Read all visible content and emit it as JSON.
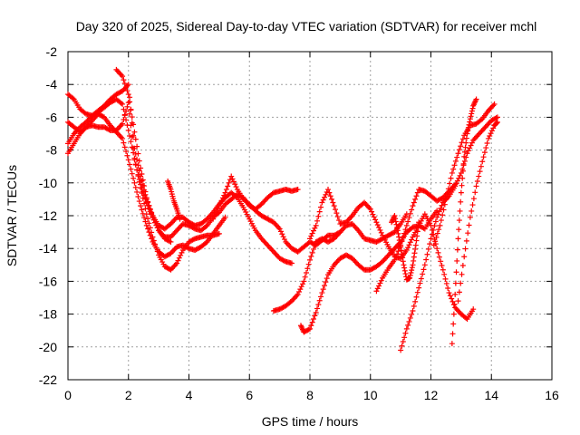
{
  "chart_data": {
    "type": "scatter",
    "title": "Day 320 of 2025, Sidereal Day-to-day VTEC variation (SDTVAR) for receiver mchl",
    "xlabel": "GPS time / hours",
    "ylabel": "SDTVAR / TECUs",
    "xlim": [
      0,
      16
    ],
    "ylim": [
      -22,
      -2
    ],
    "xticks": [
      0,
      2,
      4,
      6,
      8,
      10,
      12,
      14,
      16
    ],
    "yticks": [
      -22,
      -20,
      -18,
      -16,
      -14,
      -12,
      -10,
      -8,
      -6,
      -4,
      -2
    ],
    "grid": true,
    "marker": "plus",
    "color": "#ff0000",
    "series": [
      {
        "x": [
          0,
          0.2,
          0.4,
          0.6,
          0.8,
          1.0,
          1.2,
          1.4,
          1.6,
          1.8,
          2.0,
          2.2,
          2.4,
          2.6,
          2.8,
          3.0,
          3.2,
          3.4,
          3.6,
          3.8,
          4.0,
          4.2,
          4.4,
          4.6,
          4.8,
          5.0
        ],
        "y": [
          -4.6,
          -4.9,
          -5.5,
          -5.8,
          -5.9,
          -5.7,
          -5.4,
          -5.1,
          -4.9,
          -5.2,
          -6.8,
          -8.5,
          -10.3,
          -11.9,
          -13.3,
          -14.4,
          -15.1,
          -15.3,
          -14.9,
          -14.1,
          -13.6,
          -13.4,
          -13.3,
          -13.2,
          -13.2,
          -13.1
        ]
      },
      {
        "x": [
          0,
          0.2,
          0.4,
          0.6,
          0.8,
          1.0,
          1.2,
          1.4,
          1.6,
          1.8,
          2.0,
          2.2,
          2.4,
          2.6,
          2.8,
          3.0,
          3.2,
          3.4,
          3.6,
          3.8,
          4.0,
          4.2,
          4.4,
          4.6,
          4.8,
          5.0,
          5.2
        ],
        "y": [
          -6.3,
          -6.6,
          -6.9,
          -6.6,
          -6.2,
          -5.8,
          -6.0,
          -6.5,
          -6.9,
          -7.3,
          -8.6,
          -10.0,
          -11.4,
          -12.6,
          -13.6,
          -14.2,
          -14.5,
          -14.3,
          -13.9,
          -13.8,
          -14.0,
          -14.1,
          -13.9,
          -13.6,
          -13.1,
          -12.6,
          -12.1
        ]
      },
      {
        "x": [
          0,
          0.2,
          0.4,
          0.6,
          0.8,
          1.0,
          1.2,
          1.4,
          1.6,
          1.8,
          2.0,
          2.2,
          2.4,
          2.6,
          2.8,
          3.0,
          3.2,
          3.4,
          3.6,
          3.8,
          4.0,
          4.2,
          4.4,
          4.6,
          4.8,
          5.0,
          5.2,
          5.4,
          5.6,
          5.8,
          6.0,
          6.2,
          6.4,
          6.6,
          6.8,
          7.0,
          7.2,
          7.4,
          7.6
        ],
        "y": [
          -8.2,
          -7.6,
          -7.0,
          -6.6,
          -6.5,
          -6.6,
          -6.6,
          -6.8,
          -6.8,
          -6.4,
          -5.1,
          -8.6,
          -10.1,
          -11.2,
          -12.1,
          -12.9,
          -13.3,
          -13.3,
          -12.9,
          -12.5,
          -12.6,
          -12.8,
          -12.9,
          -12.6,
          -12.1,
          -11.8,
          -11.3,
          -11.0,
          -10.7,
          -10.9,
          -11.4,
          -11.6,
          -11.3,
          -10.9,
          -10.6,
          -10.5,
          -10.4,
          -10.5,
          -10.4
        ]
      },
      {
        "x": [
          0,
          0.2,
          0.4,
          0.6,
          0.8,
          1.0,
          1.2,
          1.4,
          1.6,
          1.8,
          2.0,
          2.2,
          2.4,
          2.6,
          2.8,
          3.0,
          3.2,
          3.4,
          3.6,
          3.8,
          4.0,
          4.2,
          4.4,
          4.6,
          4.8,
          5.0,
          5.2,
          5.4,
          5.6,
          5.8,
          6.0,
          6.2,
          6.4,
          6.6,
          6.8,
          7.0,
          7.2,
          7.4
        ],
        "y": [
          -7.6,
          -7.0,
          -6.6,
          -6.3,
          -5.9,
          -5.6,
          -5.3,
          -4.9,
          -4.6,
          -4.4,
          -4.0,
          -7.9,
          -9.6,
          -11.0,
          -12.0,
          -12.6,
          -12.8,
          -12.5,
          -12.1,
          -12.1,
          -12.4,
          -12.6,
          -12.5,
          -12.2,
          -11.8,
          -11.3,
          -10.9,
          -10.6,
          -10.9,
          -11.5,
          -12.2,
          -12.9,
          -13.4,
          -13.8,
          -14.2,
          -14.6,
          -14.8,
          -14.9
        ]
      },
      {
        "x": [
          1.6,
          1.8,
          2.0,
          2.2,
          2.4,
          2.6,
          2.8,
          3.0,
          3.2,
          3.4
        ],
        "y": [
          -3.1,
          -3.5,
          -4.6,
          -6.9,
          -9.1,
          -10.9,
          -12.1,
          -12.9,
          -13.4,
          -13.6
        ]
      },
      {
        "x": [
          3.3,
          3.4,
          3.5,
          3.6,
          3.7
        ],
        "y": [
          -9.9,
          -10.4,
          -11.1,
          -11.6,
          -12.2
        ]
      },
      {
        "x": [
          4.8,
          5.0,
          5.2,
          5.4,
          5.6,
          5.8,
          6.0,
          6.2,
          6.4,
          6.6,
          6.8,
          7.0,
          7.2,
          7.4,
          7.6,
          7.8,
          8.0,
          8.2,
          8.4,
          8.6,
          8.8,
          9.0
        ],
        "y": [
          -12.2,
          -11.4,
          -10.6,
          -9.6,
          -10.4,
          -11.0,
          -11.3,
          -11.7,
          -12.0,
          -12.2,
          -12.4,
          -12.8,
          -13.6,
          -14.0,
          -14.2,
          -13.9,
          -13.6,
          -13.8,
          -13.5,
          -13.2,
          -13.2,
          -13.0
        ]
      },
      {
        "x": [
          6.8,
          7.0,
          7.2,
          7.4,
          7.6,
          7.8,
          8.0,
          8.2,
          8.4,
          8.6,
          8.8,
          9.0,
          9.2,
          9.4,
          9.6,
          9.8,
          10.0,
          10.2,
          10.4,
          10.6,
          10.8,
          11.0,
          11.2
        ],
        "y": [
          -17.8,
          -17.7,
          -17.5,
          -17.2,
          -16.8,
          -16.0,
          -14.7,
          -13.6,
          -13.4,
          -13.6,
          -13.4,
          -13.0,
          -12.6,
          -12.5,
          -12.9,
          -13.4,
          -13.5,
          -13.6,
          -13.4,
          -13.2,
          -13.0,
          -12.5,
          -11.9
        ]
      },
      {
        "x": [
          7.7,
          7.8,
          8.0,
          8.2,
          8.4,
          8.6,
          8.8,
          9.0,
          9.2,
          9.4,
          9.6,
          9.8,
          10.0,
          10.2,
          10.4,
          10.6,
          10.8,
          11.0,
          11.2,
          11.4,
          11.6,
          11.8,
          12.0,
          12.2
        ],
        "y": [
          -18.7,
          -19.1,
          -18.9,
          -17.9,
          -16.7,
          -15.6,
          -15.0,
          -14.6,
          -14.4,
          -14.6,
          -15.0,
          -15.3,
          -15.3,
          -15.1,
          -14.8,
          -14.4,
          -14.0,
          -13.6,
          -13.0,
          -12.7,
          -12.6,
          -12.8,
          -12.2,
          -11.7
        ]
      },
      {
        "x": [
          8.0,
          8.2,
          8.4,
          8.6,
          8.8,
          9.0,
          9.2,
          9.4,
          9.6,
          9.8,
          10.0,
          10.2,
          10.4,
          10.6,
          10.8,
          11.0,
          11.2,
          11.4,
          11.6,
          11.8,
          12.0,
          12.2,
          12.4,
          12.6,
          12.8,
          13.0,
          13.2,
          13.4
        ],
        "y": [
          -13.4,
          -12.6,
          -11.2,
          -10.4,
          -11.4,
          -12.5,
          -12.4,
          -12.0,
          -11.5,
          -11.2,
          -11.6,
          -12.4,
          -13.2,
          -13.9,
          -14.5,
          -14.6,
          -14.1,
          -13.3,
          -12.6,
          -11.9,
          -12.6,
          -14.0,
          -15.3,
          -16.7,
          -17.6,
          -18.0,
          -18.3,
          -17.7
        ]
      },
      {
        "x": [
          10.2,
          10.4,
          10.6,
          10.8,
          11.0,
          11.2,
          11.4,
          11.6,
          11.8,
          12.0,
          12.2,
          12.4,
          12.6,
          12.8
        ],
        "y": [
          -16.6,
          -15.8,
          -15.2,
          -14.7,
          -13.8,
          -12.6,
          -11.4,
          -10.4,
          -10.5,
          -10.8,
          -11.1,
          -10.9,
          -10.5,
          -10.1
        ]
      },
      {
        "x": [
          11.0,
          11.2,
          11.4,
          11.6,
          11.8,
          12.0,
          12.2,
          12.4,
          12.6,
          12.8,
          13.0,
          13.2,
          13.4,
          13.6,
          13.8,
          14.0,
          14.2
        ],
        "y": [
          -20.2,
          -18.9,
          -17.8,
          -16.4,
          -15.0,
          -13.4,
          -12.1,
          -11.2,
          -10.8,
          -10.2,
          -9.4,
          -8.2,
          -7.4,
          -7.0,
          -6.6,
          -6.2,
          -6.0
        ]
      },
      {
        "x": [
          12.1,
          12.3,
          12.5,
          12.7,
          12.9,
          13.1,
          13.3,
          13.5,
          13.7,
          13.9,
          14.1
        ],
        "y": [
          -13.8,
          -12.6,
          -11.0,
          -9.4,
          -8.2,
          -7.1,
          -6.5,
          -6.4,
          -6.1,
          -5.6,
          -5.2
        ]
      },
      {
        "x": [
          12.7,
          12.8,
          12.9,
          13.0,
          13.1,
          13.2,
          13.3,
          13.4,
          13.5
        ],
        "y": [
          -19.8,
          -16.8,
          -13.4,
          -10.6,
          -8.4,
          -7.0,
          -6.1,
          -5.3,
          -4.9
        ]
      },
      {
        "x": [
          12.9,
          13.1,
          13.3,
          13.5,
          13.7,
          13.9,
          14.1,
          14.2
        ],
        "y": [
          -17.2,
          -14.5,
          -12.1,
          -10.2,
          -8.7,
          -7.3,
          -6.5,
          -6.3
        ]
      },
      {
        "x": [
          10.7,
          10.8,
          10.9,
          11.0,
          11.1,
          11.2,
          11.3,
          11.4,
          11.5,
          11.6
        ],
        "y": [
          -12.4,
          -12.0,
          -12.9,
          -13.9,
          -15.0,
          -15.9,
          -15.8,
          -15.0,
          -13.8,
          -12.4
        ]
      }
    ]
  }
}
